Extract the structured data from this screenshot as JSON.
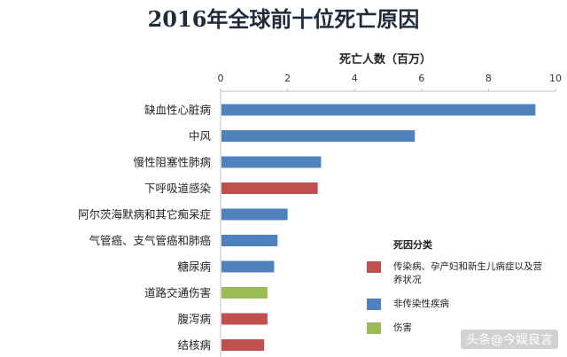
{
  "chart_data": {
    "type": "bar",
    "orientation": "horizontal",
    "title": "2016年全球前十位死亡原因",
    "xlabel": "死亡人数（百万）",
    "ylabel": "",
    "xlim": [
      0,
      10
    ],
    "xticks": [
      "0",
      "2",
      "4",
      "6",
      "8",
      "10"
    ],
    "axis_position": "top",
    "grid": false,
    "legend_position": "bottom-right",
    "categories": [
      "缺血性心脏病",
      "中风",
      "慢性阻塞性肺病",
      "下呼吸道感染",
      "阿尔茨海默病和其它痴呆症",
      "气管癌、支气管癌和肺癌",
      "糖尿病",
      "道路交通伤害",
      "腹泻病",
      "结核病"
    ],
    "values": [
      9.4,
      5.8,
      3.0,
      2.9,
      2.0,
      1.7,
      1.6,
      1.4,
      1.4,
      1.3
    ],
    "groups": [
      "非传染性疾病",
      "非传染性疾病",
      "非传染性疾病",
      "传染病、孕产妇和新生儿病症以及营养状况",
      "非传染性疾病",
      "非传染性疾病",
      "非传染性疾病",
      "伤害",
      "传染病、孕产妇和新生儿病症以及营养状况",
      "传染病、孕产妇和新生儿病症以及营养状况"
    ],
    "legend": {
      "title": "死因分类",
      "items": [
        {
          "label": "传染病、孕产妇和新生儿病症以及营养状况",
          "color": "#c0504d"
        },
        {
          "label": "非传染性疾病",
          "color": "#4f81bd"
        },
        {
          "label": "伤害",
          "color": "#9bbb59"
        }
      ]
    }
  },
  "watermark": "头条@今娱良言"
}
